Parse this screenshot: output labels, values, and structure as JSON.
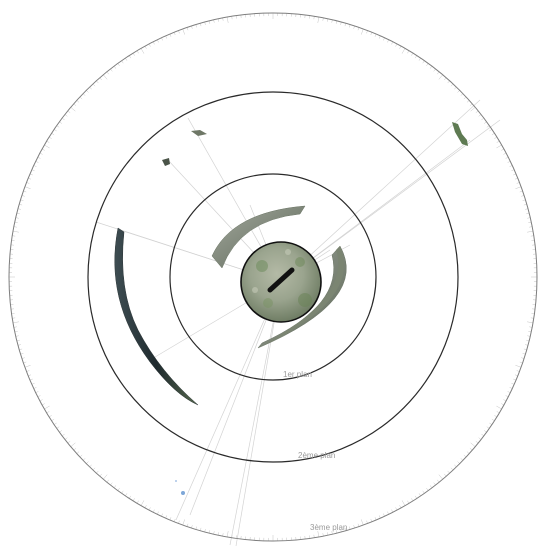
{
  "rings": [
    {
      "id": "ring-1",
      "label": "1er plan"
    },
    {
      "id": "ring-2",
      "label": "2ème plan"
    },
    {
      "id": "ring-3",
      "label": "3ème plan"
    }
  ],
  "colors": {
    "ring_stroke": "#2a2a2a",
    "outer_ring_stroke": "#7d7d7d",
    "tick": "#c4c4c4",
    "ray": "#d3d3d3",
    "label": "#9a9a9a",
    "ground_fill": "#9aa48e",
    "vegetation": "#5e7a52",
    "dark_vegetation": "#2e3a3c",
    "strip_fill": "#8e958a",
    "center_bar": "#111111"
  }
}
